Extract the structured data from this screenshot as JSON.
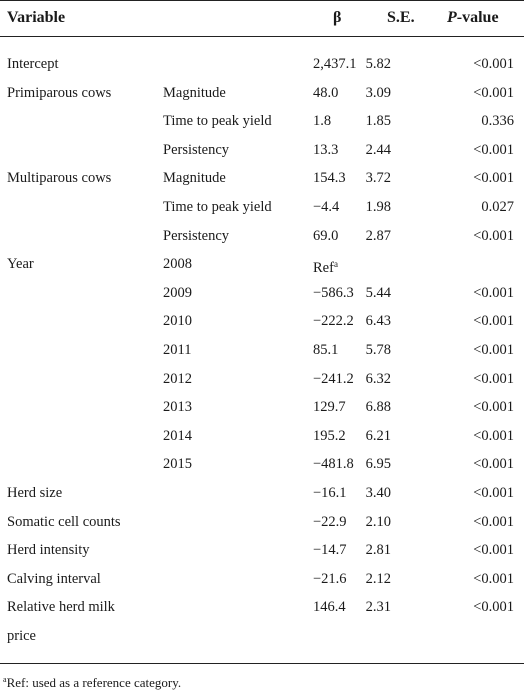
{
  "table": {
    "headers": {
      "variable": "Variable",
      "beta": "β",
      "se": "S.E.",
      "p_italic": "P",
      "p_rest": "-value"
    },
    "rows": [
      {
        "variable": "Intercept",
        "sub": "",
        "beta": "2,437.1",
        "se": "5.82",
        "p": "<0.001"
      },
      {
        "variable": "Primiparous cows",
        "sub": "Magnitude",
        "beta": "48.0",
        "se": "3.09",
        "p": "<0.001"
      },
      {
        "variable": "",
        "sub": "Time to peak yield",
        "beta": "1.8",
        "se": "1.85",
        "p": "0.336"
      },
      {
        "variable": "",
        "sub": "Persistency",
        "beta": "13.3",
        "se": "2.44",
        "p": "<0.001"
      },
      {
        "variable": "Multiparous cows",
        "sub": "Magnitude",
        "beta": "154.3",
        "se": "3.72",
        "p": "<0.001"
      },
      {
        "variable": "",
        "sub": "Time to peak yield",
        "beta": "−4.4",
        "se": "1.98",
        "p": "0.027"
      },
      {
        "variable": "",
        "sub": "Persistency",
        "beta": "69.0",
        "se": "2.87",
        "p": "<0.001"
      },
      {
        "variable": "Year",
        "sub": "2008",
        "beta": "Ref",
        "beta_sup": "a",
        "se": "",
        "p": ""
      },
      {
        "variable": "",
        "sub": "2009",
        "beta": "−586.3",
        "se": "5.44",
        "p": "<0.001"
      },
      {
        "variable": "",
        "sub": "2010",
        "beta": "−222.2",
        "se": "6.43",
        "p": "<0.001"
      },
      {
        "variable": "",
        "sub": "2011",
        "beta": "85.1",
        "se": "5.78",
        "p": "<0.001"
      },
      {
        "variable": "",
        "sub": "2012",
        "beta": "−241.2",
        "se": "6.32",
        "p": "<0.001"
      },
      {
        "variable": "",
        "sub": "2013",
        "beta": "129.7",
        "se": "6.88",
        "p": "<0.001"
      },
      {
        "variable": "",
        "sub": "2014",
        "beta": "195.2",
        "se": "6.21",
        "p": "<0.001"
      },
      {
        "variable": "",
        "sub": "2015",
        "beta": "−481.8",
        "se": "6.95",
        "p": "<0.001"
      },
      {
        "variable": "Herd size",
        "sub": "",
        "beta": "−16.1",
        "se": "3.40",
        "p": "<0.001"
      },
      {
        "variable": "Somatic cell counts",
        "sub": "",
        "beta": "−22.9",
        "se": "2.10",
        "p": "<0.001"
      },
      {
        "variable": "Herd intensity",
        "sub": "",
        "beta": "−14.7",
        "se": "2.81",
        "p": "<0.001"
      },
      {
        "variable": "Calving interval",
        "sub": "",
        "beta": "−21.6",
        "se": "2.12",
        "p": "<0.001"
      },
      {
        "variable": "Relative herd milk",
        "variable_line2": "price",
        "sub": "",
        "beta": "146.4",
        "se": "2.31",
        "p": "<0.001"
      }
    ],
    "footnote": {
      "marker": "a",
      "text": "Ref: used as a reference category."
    }
  }
}
